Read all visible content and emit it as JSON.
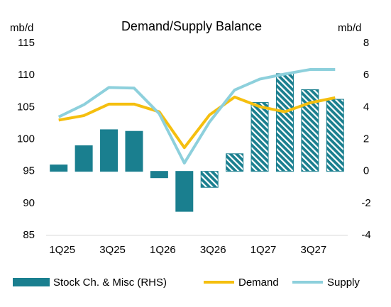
{
  "chart_data": {
    "type": "bar",
    "title": "Demand/Supply Balance",
    "y_label": "mb/d",
    "y2_label": "mb/d",
    "categories": [
      "1Q25",
      null,
      "3Q25",
      null,
      "1Q26",
      null,
      "3Q26",
      null,
      "1Q27",
      null,
      "3Q27",
      null
    ],
    "series": [
      {
        "name": "Stock Ch. & Misc (RHS)",
        "type": "bar",
        "axis": "y2",
        "color": "#1a7f8f",
        "hatch": [
          false,
          false,
          false,
          false,
          false,
          false,
          true,
          true,
          true,
          true,
          true,
          true
        ],
        "values": [
          0.4,
          1.6,
          2.6,
          2.5,
          -0.4,
          -2.5,
          -1.0,
          1.1,
          4.3,
          6.1,
          5.1,
          4.5
        ]
      },
      {
        "name": "Demand",
        "type": "line",
        "color": "#f5bf0f",
        "values": [
          103.0,
          103.7,
          105.5,
          105.5,
          104.3,
          98.7,
          103.8,
          106.6,
          105.1,
          104.3,
          105.7,
          106.5
        ]
      },
      {
        "name": "Supply",
        "type": "line",
        "color": "#8dd0dc",
        "values": [
          103.5,
          105.4,
          108.1,
          108.0,
          104.0,
          96.3,
          102.7,
          107.7,
          109.4,
          110.2,
          110.9,
          110.9
        ]
      }
    ],
    "ylim": [
      85,
      115
    ],
    "yticks": [
      85,
      90,
      95,
      100,
      105,
      110,
      115
    ],
    "y2lim": [
      -4,
      8
    ],
    "y2ticks": [
      -4,
      -2,
      0,
      2,
      4,
      6,
      8
    ]
  }
}
